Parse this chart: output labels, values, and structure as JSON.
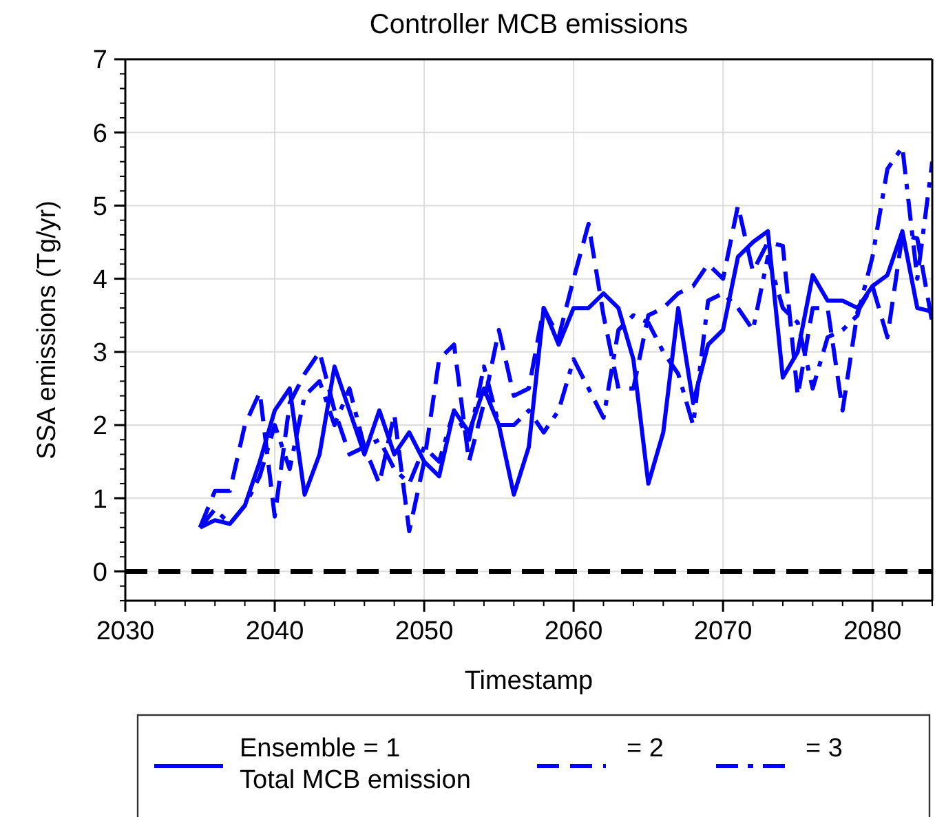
{
  "chart_data": {
    "type": "line",
    "title": "Controller MCB emissions",
    "xlabel": "Timestamp",
    "ylabel": "SSA emissions (Tg/yr)",
    "x": [
      2035,
      2036,
      2037,
      2038,
      2039,
      2040,
      2041,
      2042,
      2043,
      2044,
      2045,
      2046,
      2047,
      2048,
      2049,
      2050,
      2051,
      2052,
      2053,
      2054,
      2055,
      2056,
      2057,
      2058,
      2059,
      2060,
      2061,
      2062,
      2063,
      2064,
      2065,
      2066,
      2067,
      2068,
      2069,
      2070,
      2071,
      2072,
      2073,
      2074,
      2075,
      2076,
      2077,
      2078,
      2079,
      2080,
      2081,
      2082,
      2083,
      2084
    ],
    "series": [
      {
        "name": "Ensemble = 1\nTotal MCB emission",
        "color": "#0000ff",
        "line_style": "solid",
        "values": [
          0.6,
          0.7,
          0.65,
          0.9,
          1.5,
          2.2,
          2.5,
          1.05,
          1.6,
          2.8,
          2.2,
          1.6,
          2.2,
          1.6,
          1.9,
          1.5,
          1.3,
          2.2,
          1.9,
          2.5,
          2.0,
          1.05,
          1.7,
          3.6,
          3.1,
          3.6,
          3.6,
          3.8,
          3.6,
          2.9,
          1.2,
          1.9,
          3.6,
          2.3,
          3.1,
          3.3,
          4.3,
          4.5,
          4.65,
          2.65,
          3.0,
          4.05,
          3.7,
          3.7,
          3.6,
          3.9,
          4.05,
          4.65,
          3.6,
          3.55
        ]
      },
      {
        "name": "= 2",
        "color": "#0000ff",
        "line_style": "dashed",
        "values": [
          0.6,
          1.1,
          1.1,
          2.0,
          2.45,
          0.75,
          2.3,
          2.7,
          3.0,
          2.2,
          1.6,
          1.7,
          1.2,
          2.15,
          0.55,
          1.5,
          2.9,
          3.1,
          1.5,
          2.3,
          3.3,
          2.4,
          2.5,
          3.6,
          3.2,
          4.0,
          4.75,
          3.5,
          2.5,
          2.5,
          3.5,
          3.6,
          3.8,
          3.9,
          4.2,
          4.0,
          5.0,
          4.1,
          4.5,
          4.45,
          2.4,
          3.6,
          3.6,
          2.2,
          3.55,
          3.9,
          3.2,
          4.6,
          4.55,
          3.4
        ]
      },
      {
        "name": "= 3",
        "color": "#0000ff",
        "line_style": "dashdot",
        "values": [
          0.6,
          0.85,
          0.65,
          0.9,
          1.3,
          2.0,
          1.4,
          2.4,
          2.6,
          2.0,
          2.5,
          1.7,
          1.8,
          1.4,
          1.2,
          1.7,
          1.5,
          2.2,
          1.8,
          2.8,
          2.0,
          2.0,
          2.2,
          1.9,
          2.2,
          2.9,
          2.5,
          2.1,
          3.3,
          3.5,
          3.4,
          3.0,
          2.7,
          2.0,
          3.7,
          3.8,
          3.6,
          3.3,
          4.3,
          3.6,
          3.4,
          2.5,
          3.2,
          3.3,
          3.5,
          4.3,
          5.5,
          5.8,
          4.0,
          5.6
        ]
      }
    ],
    "xlim": [
      2030,
      2084
    ],
    "xticks": [
      2030,
      2040,
      2050,
      2060,
      2070,
      2080
    ],
    "ylim": [
      -0.4,
      7
    ],
    "yticks": [
      0,
      1,
      2,
      3,
      4,
      5,
      6,
      7
    ],
    "ref_lines": [
      {
        "axis": "y",
        "value": 0,
        "color": "#000000",
        "line_style": "dashed"
      }
    ],
    "grid": true,
    "legend": "bottom"
  }
}
